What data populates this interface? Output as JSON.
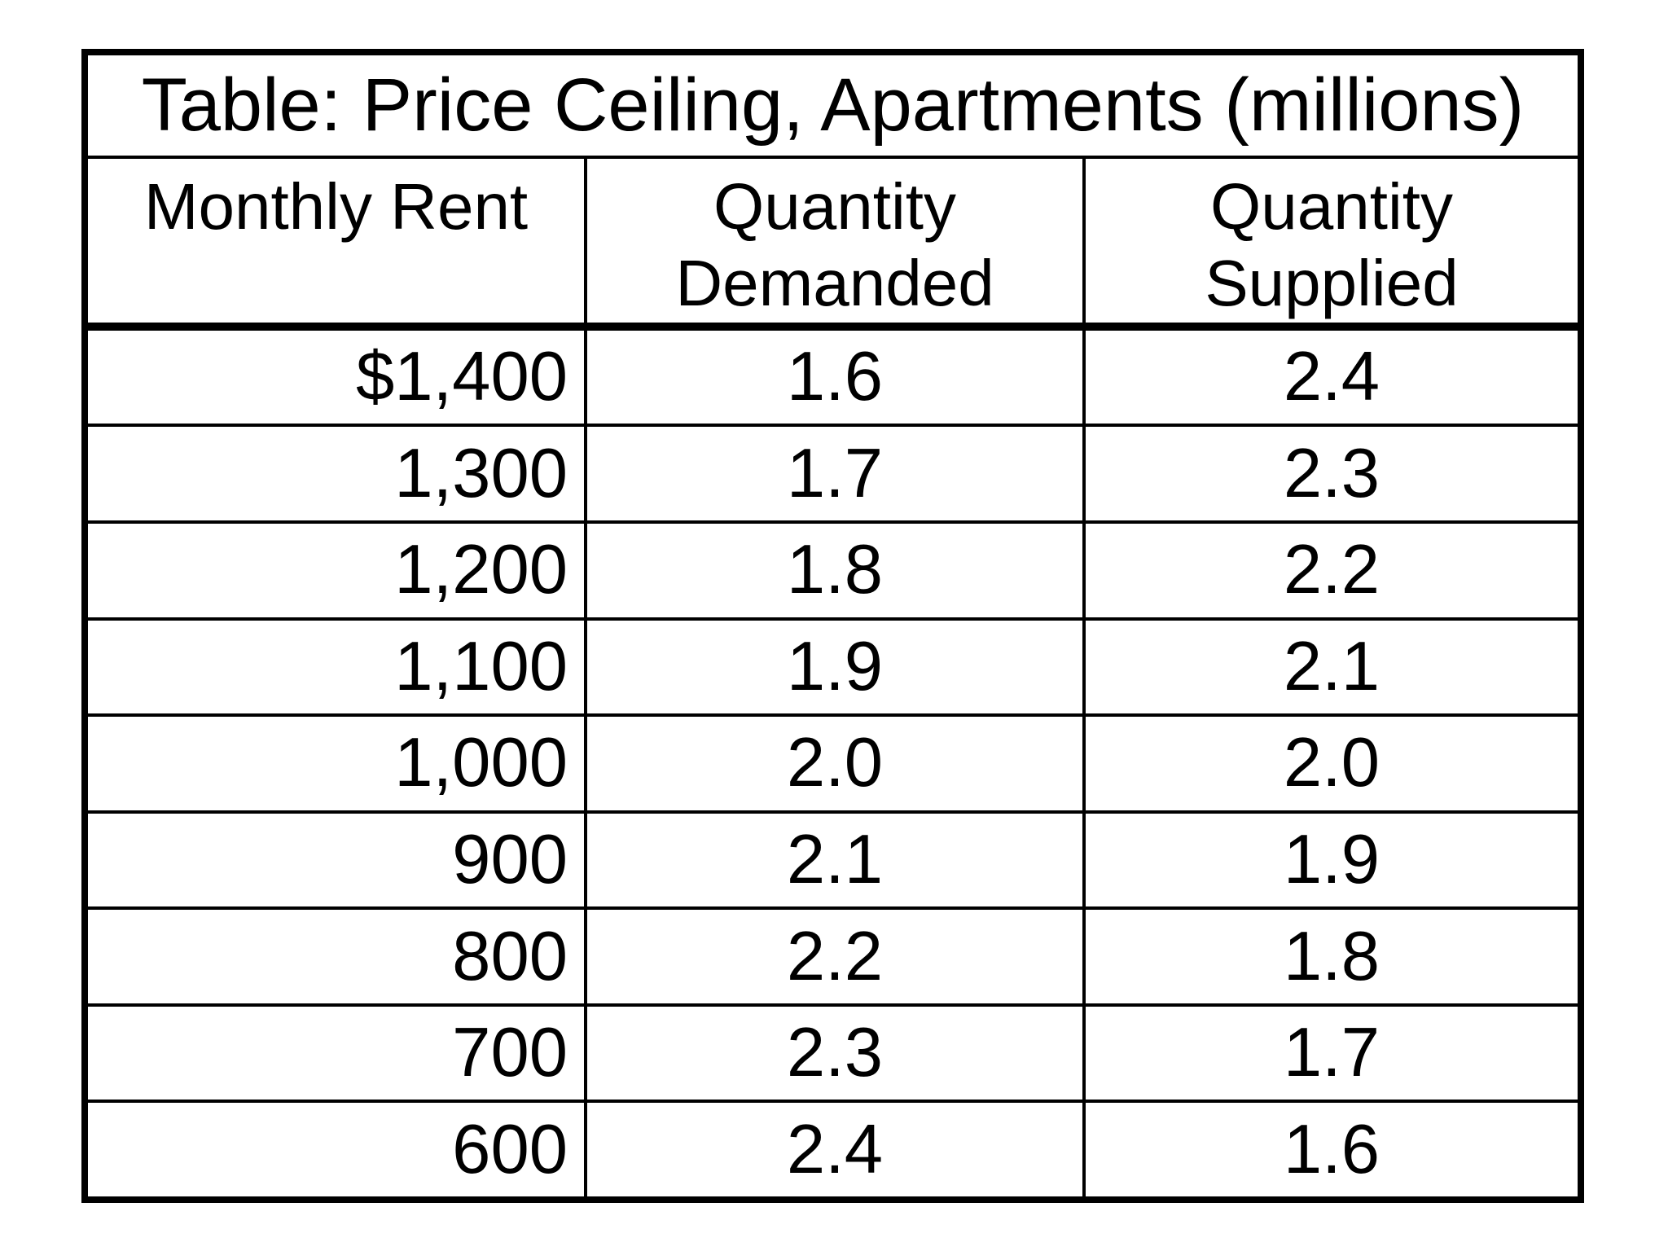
{
  "table": {
    "title": "Table: Price Ceiling, Apartments (millions)",
    "headers": {
      "rent": "Monthly Rent",
      "demanded": "Quantity\nDemanded",
      "supplied": "Quantity\nSupplied"
    },
    "rows": [
      {
        "rent": "$1,400",
        "demanded": "1.6",
        "supplied": "2.4"
      },
      {
        "rent": "1,300",
        "demanded": "1.7",
        "supplied": "2.3"
      },
      {
        "rent": "1,200",
        "demanded": "1.8",
        "supplied": "2.2"
      },
      {
        "rent": "1,100",
        "demanded": "1.9",
        "supplied": "2.1"
      },
      {
        "rent": "1,000",
        "demanded": "2.0",
        "supplied": "2.0"
      },
      {
        "rent": "900",
        "demanded": "2.1",
        "supplied": "1.9"
      },
      {
        "rent": "800",
        "demanded": "2.2",
        "supplied": "1.8"
      },
      {
        "rent": "700",
        "demanded": "2.3",
        "supplied": "1.7"
      },
      {
        "rent": "600",
        "demanded": "2.4",
        "supplied": "1.6"
      }
    ],
    "colors": {
      "border": "#000000",
      "text": "#000000",
      "background": "#ffffff"
    }
  },
  "chart_data": {
    "type": "table",
    "title": "Table: Price Ceiling, Apartments (millions)",
    "columns": [
      "Monthly Rent",
      "Quantity Demanded",
      "Quantity Supplied"
    ],
    "rows": [
      [
        "$1,400",
        1.6,
        2.4
      ],
      [
        "1,300",
        1.7,
        2.3
      ],
      [
        "1,200",
        1.8,
        2.2
      ],
      [
        "1,100",
        1.9,
        2.1
      ],
      [
        "1,000",
        2.0,
        2.0
      ],
      [
        "900",
        2.1,
        1.9
      ],
      [
        "800",
        2.2,
        1.8
      ],
      [
        "700",
        2.3,
        1.7
      ],
      [
        "600",
        2.4,
        1.6
      ]
    ]
  }
}
